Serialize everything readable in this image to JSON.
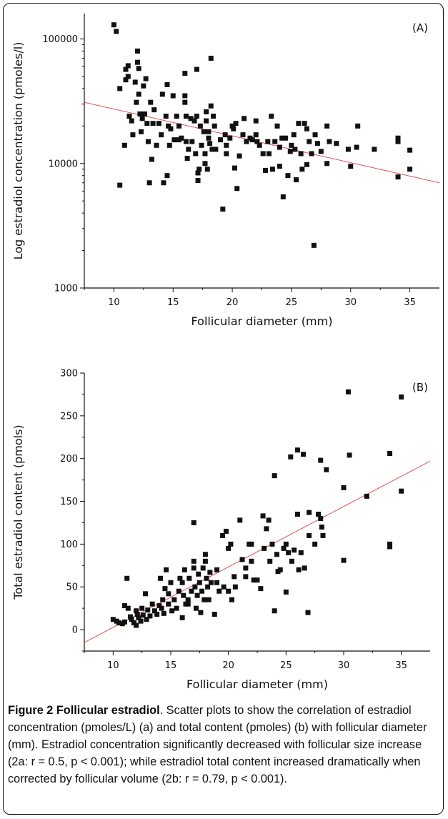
{
  "caption": {
    "bold": "Figure 2 Follicular estradiol",
    "text": ". Scatter plots to show the correlation of estradiol concentration (pmoles/L) (a) and total content (pmoles) (b) with follicular diameter (mm). Estradiol concentration significantly decreased with follicular size increase (2a: r = 0.5, p < 0.001); while estradiol total content increased dramatically when corrected by follicular volume (2b: r = 0.79, p < 0.001)."
  },
  "chart_data": [
    {
      "type": "scatter",
      "panel_label": "(A)",
      "xlabel": "Follicular diameter (mm)",
      "ylabel": "Log estradiol concentration (pmoles/l)",
      "yscale": "log",
      "xlim": [
        7.5,
        37.5
      ],
      "ylim": [
        1000,
        160000
      ],
      "xticks": [
        10,
        15,
        20,
        25,
        30,
        35
      ],
      "xtick_labels": [
        "10",
        "15",
        "20",
        "25",
        "30",
        "35"
      ],
      "yticks": [
        1000,
        10000,
        100000
      ],
      "ytick_labels": [
        "1000",
        "10000",
        "100000"
      ],
      "marker_color": "#111111",
      "trend_color": "#e05050",
      "trendline": [
        [
          7.5,
          31000
        ],
        [
          37.5,
          7000
        ]
      ],
      "points": [
        [
          10.0,
          130000
        ],
        [
          10.2,
          115000
        ],
        [
          10.5,
          6700
        ],
        [
          10.5,
          40000
        ],
        [
          10.9,
          14000
        ],
        [
          11.0,
          57000
        ],
        [
          11.0,
          47000
        ],
        [
          11.2,
          61000
        ],
        [
          11.2,
          50000
        ],
        [
          11.3,
          24000
        ],
        [
          11.5,
          22000
        ],
        [
          11.6,
          17000
        ],
        [
          11.8,
          45000
        ],
        [
          11.9,
          31000
        ],
        [
          12.0,
          80000
        ],
        [
          12.0,
          65000
        ],
        [
          12.1,
          58000
        ],
        [
          12.1,
          36000
        ],
        [
          12.2,
          25000
        ],
        [
          12.3,
          18000
        ],
        [
          12.4,
          23000
        ],
        [
          12.5,
          42000
        ],
        [
          12.6,
          25000
        ],
        [
          12.7,
          48000
        ],
        [
          12.8,
          21000
        ],
        [
          12.9,
          15000
        ],
        [
          13.0,
          7000
        ],
        [
          13.1,
          31000
        ],
        [
          13.2,
          10800
        ],
        [
          13.3,
          21000
        ],
        [
          13.4,
          27000
        ],
        [
          13.6,
          14000
        ],
        [
          13.8,
          21000
        ],
        [
          14.0,
          17000
        ],
        [
          14.1,
          36000
        ],
        [
          14.2,
          7000
        ],
        [
          14.4,
          24000
        ],
        [
          14.5,
          43000
        ],
        [
          14.5,
          8000
        ],
        [
          14.6,
          20000
        ],
        [
          14.7,
          14000
        ],
        [
          14.8,
          19000
        ],
        [
          15.0,
          35000
        ],
        [
          15.1,
          15500
        ],
        [
          15.3,
          24000
        ],
        [
          15.5,
          15500
        ],
        [
          15.7,
          16000
        ],
        [
          16.0,
          53000
        ],
        [
          16.0,
          35000
        ],
        [
          16.0,
          31000
        ],
        [
          16.1,
          24000
        ],
        [
          16.1,
          15000
        ],
        [
          16.2,
          11000
        ],
        [
          16.3,
          13000
        ],
        [
          16.5,
          23000
        ],
        [
          16.6,
          15000
        ],
        [
          16.8,
          22000
        ],
        [
          16.9,
          12000
        ],
        [
          17.0,
          57000
        ],
        [
          17.0,
          24000
        ],
        [
          17.1,
          8400
        ],
        [
          17.1,
          7300
        ],
        [
          17.2,
          9000
        ],
        [
          17.3,
          20000
        ],
        [
          17.4,
          14000
        ],
        [
          17.6,
          18000
        ],
        [
          17.7,
          12000
        ],
        [
          17.7,
          10000
        ],
        [
          17.8,
          26000
        ],
        [
          17.8,
          22000
        ],
        [
          17.9,
          9000
        ],
        [
          18.0,
          18000
        ],
        [
          18.0,
          16000
        ],
        [
          18.1,
          14500
        ],
        [
          18.2,
          70000
        ],
        [
          18.2,
          29000
        ],
        [
          18.3,
          13000
        ],
        [
          18.4,
          24000
        ],
        [
          18.5,
          20000
        ],
        [
          18.6,
          13000
        ],
        [
          19.0,
          15500
        ],
        [
          19.2,
          4300
        ],
        [
          19.4,
          17000
        ],
        [
          19.5,
          12000
        ],
        [
          19.8,
          16000
        ],
        [
          20.0,
          20000
        ],
        [
          20.1,
          19000
        ],
        [
          20.2,
          9200
        ],
        [
          20.3,
          21000
        ],
        [
          20.4,
          6300
        ],
        [
          20.6,
          11500
        ],
        [
          20.9,
          17000
        ],
        [
          21.0,
          23000
        ],
        [
          21.2,
          15000
        ],
        [
          21.5,
          16000
        ],
        [
          21.7,
          15500
        ],
        [
          22.0,
          22000
        ],
        [
          22.1,
          15000
        ],
        [
          22.3,
          14000
        ],
        [
          22.6,
          12000
        ],
        [
          22.8,
          8800
        ],
        [
          23.0,
          15000
        ],
        [
          23.1,
          12000
        ],
        [
          23.3,
          24000
        ],
        [
          23.4,
          9000
        ],
        [
          23.6,
          15000
        ],
        [
          23.8,
          20000
        ],
        [
          24.0,
          13500
        ],
        [
          24.0,
          9500
        ],
        [
          24.2,
          16000
        ],
        [
          24.3,
          5400
        ],
        [
          24.5,
          16000
        ],
        [
          24.7,
          8000
        ],
        [
          24.9,
          12500
        ],
        [
          25.0,
          14000
        ],
        [
          25.2,
          17000
        ],
        [
          25.3,
          13000
        ],
        [
          25.4,
          7400
        ],
        [
          25.6,
          21000
        ],
        [
          25.8,
          12000
        ],
        [
          25.9,
          9000
        ],
        [
          26.1,
          21000
        ],
        [
          26.3,
          19000
        ],
        [
          26.5,
          15000
        ],
        [
          26.7,
          12000
        ],
        [
          26.9,
          2200
        ],
        [
          27.0,
          17000
        ],
        [
          27.2,
          14500
        ],
        [
          27.5,
          12500
        ],
        [
          28.0,
          20000
        ],
        [
          28.0,
          10000
        ],
        [
          28.2,
          15000
        ],
        [
          28.8,
          14500
        ],
        [
          29.8,
          13000
        ],
        [
          30.0,
          9500
        ],
        [
          30.5,
          13500
        ],
        [
          30.6,
          20000
        ],
        [
          32.0,
          13000
        ],
        [
          34.0,
          16000
        ],
        [
          34.0,
          15000
        ],
        [
          34.0,
          7800
        ],
        [
          35.0,
          12800
        ],
        [
          35.0,
          9000
        ],
        [
          26.3,
          9800
        ],
        [
          22.0,
          17000
        ],
        [
          19.5,
          14000
        ],
        [
          15.5,
          20000
        ]
      ]
    },
    {
      "type": "scatter",
      "panel_label": "(B)",
      "xlabel": "Follicular diameter (mm)",
      "ylabel": "Total estradiol content (pmols)",
      "xlim": [
        7.5,
        37.5
      ],
      "ylim": [
        -25,
        300
      ],
      "xticks": [
        10,
        15,
        20,
        25,
        30,
        35
      ],
      "xtick_labels": [
        "10",
        "15",
        "20",
        "25",
        "30",
        "35"
      ],
      "yticks": [
        0,
        50,
        100,
        150,
        200,
        250,
        300
      ],
      "ytick_labels": [
        "0",
        "50",
        "100",
        "150",
        "200",
        "250",
        "300"
      ],
      "marker_color": "#111111",
      "trend_color": "#e05050",
      "trendline": [
        [
          7.5,
          -15
        ],
        [
          37.5,
          197
        ]
      ],
      "points": [
        [
          10.0,
          12
        ],
        [
          10.3,
          10
        ],
        [
          10.5,
          8
        ],
        [
          10.8,
          7
        ],
        [
          11.0,
          9
        ],
        [
          11.0,
          28
        ],
        [
          11.2,
          60
        ],
        [
          11.3,
          25
        ],
        [
          11.5,
          15
        ],
        [
          11.6,
          12
        ],
        [
          11.8,
          8
        ],
        [
          12.0,
          22
        ],
        [
          12.0,
          5
        ],
        [
          12.1,
          18
        ],
        [
          12.2,
          14
        ],
        [
          12.4,
          10
        ],
        [
          12.5,
          25
        ],
        [
          12.6,
          17
        ],
        [
          12.8,
          42
        ],
        [
          12.9,
          12
        ],
        [
          13.0,
          23
        ],
        [
          13.2,
          16
        ],
        [
          13.4,
          30
        ],
        [
          13.6,
          22
        ],
        [
          13.8,
          18
        ],
        [
          14.0,
          28
        ],
        [
          14.1,
          60
        ],
        [
          14.2,
          25
        ],
        [
          14.3,
          35
        ],
        [
          14.4,
          19
        ],
        [
          14.5,
          48
        ],
        [
          14.6,
          70
        ],
        [
          14.8,
          30
        ],
        [
          15.0,
          55
        ],
        [
          15.1,
          22
        ],
        [
          15.3,
          35
        ],
        [
          15.5,
          25
        ],
        [
          15.7,
          45
        ],
        [
          15.8,
          60
        ],
        [
          16.0,
          14
        ],
        [
          16.0,
          55
        ],
        [
          16.1,
          40
        ],
        [
          16.2,
          70
        ],
        [
          16.3,
          30
        ],
        [
          16.5,
          35
        ],
        [
          16.6,
          60
        ],
        [
          16.8,
          45
        ],
        [
          17.0,
          125
        ],
        [
          17.0,
          80
        ],
        [
          17.0,
          72
        ],
        [
          17.1,
          50
        ],
        [
          17.2,
          25
        ],
        [
          17.3,
          40
        ],
        [
          17.4,
          65
        ],
        [
          17.5,
          55
        ],
        [
          17.6,
          20
        ],
        [
          17.7,
          45
        ],
        [
          17.8,
          72
        ],
        [
          17.9,
          35
        ],
        [
          18.0,
          88
        ],
        [
          18.0,
          80
        ],
        [
          18.1,
          60
        ],
        [
          18.2,
          50
        ],
        [
          18.3,
          35
        ],
        [
          18.4,
          67
        ],
        [
          18.5,
          55
        ],
        [
          18.8,
          18
        ],
        [
          19.0,
          55
        ],
        [
          19.2,
          45
        ],
        [
          19.5,
          110
        ],
        [
          19.6,
          50
        ],
        [
          19.8,
          115
        ],
        [
          20.0,
          95
        ],
        [
          20.0,
          45
        ],
        [
          20.2,
          100
        ],
        [
          20.3,
          35
        ],
        [
          20.5,
          62
        ],
        [
          20.6,
          50
        ],
        [
          21.0,
          128
        ],
        [
          21.2,
          82
        ],
        [
          21.5,
          62
        ],
        [
          21.8,
          100
        ],
        [
          22.0,
          100
        ],
        [
          22.0,
          80
        ],
        [
          22.2,
          58
        ],
        [
          22.5,
          58
        ],
        [
          22.8,
          48
        ],
        [
          23.0,
          133
        ],
        [
          23.1,
          95
        ],
        [
          23.3,
          118
        ],
        [
          23.5,
          128
        ],
        [
          23.6,
          80
        ],
        [
          23.8,
          100
        ],
        [
          24.0,
          180
        ],
        [
          24.0,
          22
        ],
        [
          24.2,
          88
        ],
        [
          24.3,
          68
        ],
        [
          24.5,
          70
        ],
        [
          24.8,
          95
        ],
        [
          25.0,
          100
        ],
        [
          25.0,
          44
        ],
        [
          25.2,
          90
        ],
        [
          25.4,
          202
        ],
        [
          25.5,
          80
        ],
        [
          25.7,
          93
        ],
        [
          26.0,
          210
        ],
        [
          26.0,
          135
        ],
        [
          26.1,
          70
        ],
        [
          26.3,
          90
        ],
        [
          26.5,
          205
        ],
        [
          26.6,
          72
        ],
        [
          26.9,
          20
        ],
        [
          27.0,
          137
        ],
        [
          27.0,
          110
        ],
        [
          27.5,
          100
        ],
        [
          27.8,
          135
        ],
        [
          28.0,
          198
        ],
        [
          28.0,
          130
        ],
        [
          28.1,
          120
        ],
        [
          28.2,
          110
        ],
        [
          28.5,
          187
        ],
        [
          30.0,
          166
        ],
        [
          30.0,
          81
        ],
        [
          30.4,
          278
        ],
        [
          30.5,
          204
        ],
        [
          32.0,
          156
        ],
        [
          34.0,
          206
        ],
        [
          34.0,
          100
        ],
        [
          34.0,
          97
        ],
        [
          35.0,
          272
        ],
        [
          35.0,
          162
        ],
        [
          16.5,
          30
        ],
        [
          19.0,
          70
        ],
        [
          21.5,
          72
        ],
        [
          14.8,
          42
        ]
      ]
    }
  ]
}
